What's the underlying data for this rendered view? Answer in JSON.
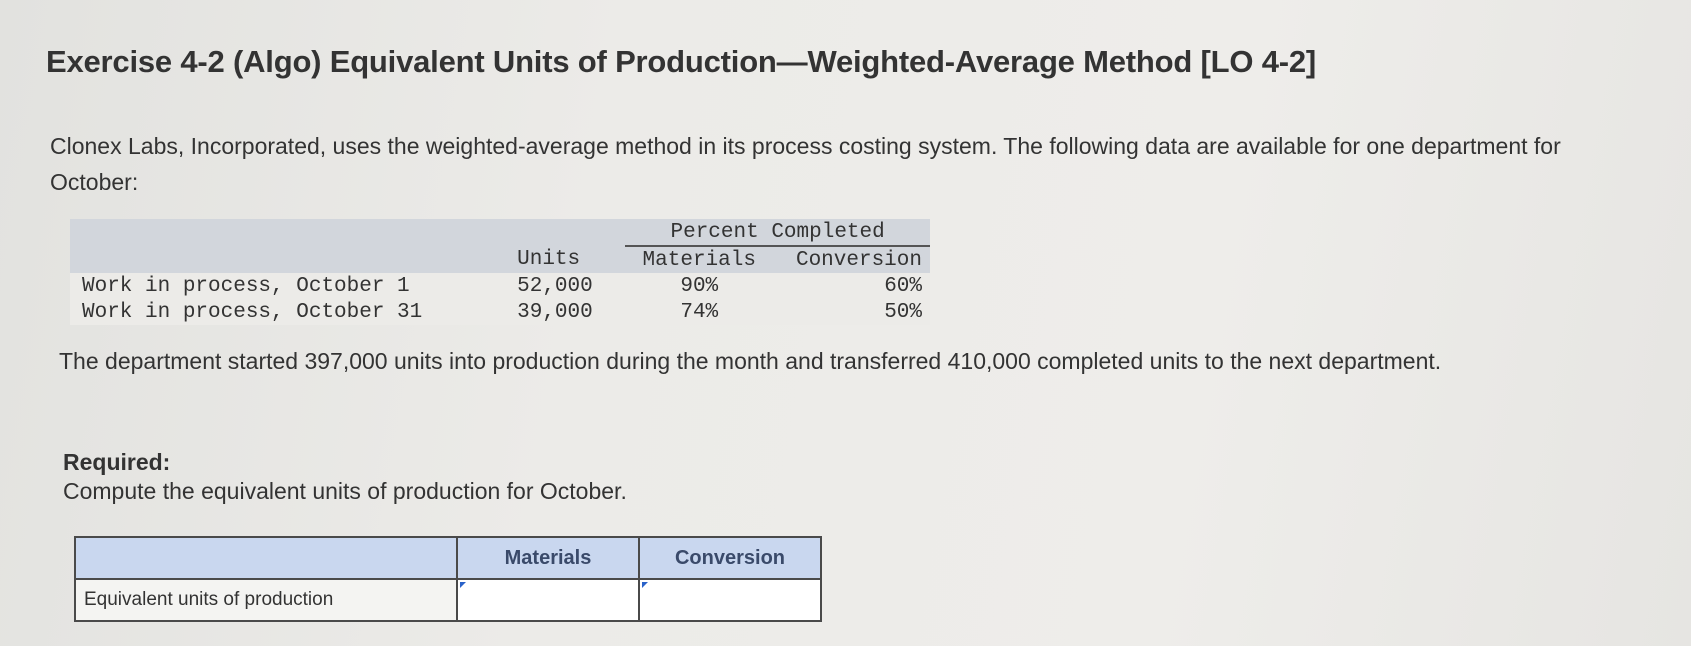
{
  "exercise": {
    "title": "Exercise 4-2 (Algo) Equivalent Units of Production—Weighted-Average Method [LO 4-2]",
    "intro": "Clonex Labs, Incorporated, uses the weighted-average method in its process costing system. The following data are available for one department for October:"
  },
  "data_table": {
    "group_header": "Percent Completed",
    "col_units": "Units",
    "col_materials": "Materials",
    "col_conversion": "Conversion",
    "rows": [
      {
        "label": "Work in process, October 1",
        "units": "52,000",
        "materials": "90%",
        "conversion": "60%"
      },
      {
        "label": "Work in process, October 31",
        "units": "39,000",
        "materials": "74%",
        "conversion": "50%"
      }
    ]
  },
  "paragraph2": "The department started 397,000 units into production during the month and transferred 410,000 completed units to the next department.",
  "required": {
    "label": "Required:",
    "text": "Compute the equivalent units of production for October."
  },
  "answer_table": {
    "col_materials": "Materials",
    "col_conversion": "Conversion",
    "row_label": "Equivalent units of production",
    "materials_value": "",
    "conversion_value": ""
  }
}
